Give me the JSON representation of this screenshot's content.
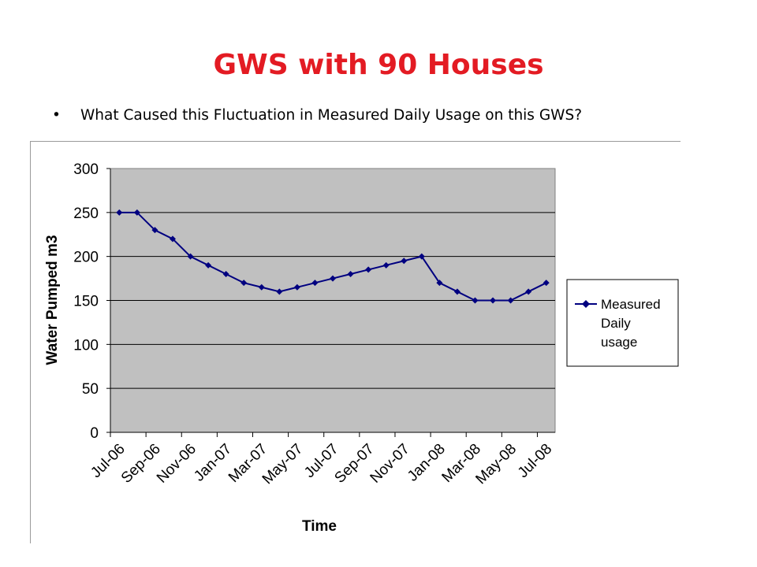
{
  "slide": {
    "title": "GWS with 90 Houses",
    "bullet": "What Caused this Fluctuation in Measured Daily Usage on this GWS?"
  },
  "chart_data": {
    "type": "line",
    "xlabel": "Time",
    "ylabel": "Water Pumped m3",
    "ylim": [
      0,
      300
    ],
    "yticks": [
      0,
      50,
      100,
      150,
      200,
      250,
      300
    ],
    "xtick_labels": [
      "Jul-06",
      "Sep-06",
      "Nov-06",
      "Jan-07",
      "Mar-07",
      "May-07",
      "Jul-07",
      "Sep-07",
      "Nov-07",
      "Jan-08",
      "Mar-08",
      "May-08",
      "Jul-08"
    ],
    "x": [
      "2006-07-15",
      "2006-08-15",
      "2006-09-15",
      "2006-10-15",
      "2006-11-15",
      "2006-12-15",
      "2007-01-15",
      "2007-02-15",
      "2007-03-15",
      "2007-04-15",
      "2007-05-15",
      "2007-06-15",
      "2007-07-15",
      "2007-08-15",
      "2007-09-15",
      "2007-10-15",
      "2007-11-15",
      "2007-12-15",
      "2008-01-15",
      "2008-02-15",
      "2008-03-15",
      "2008-04-15",
      "2008-05-15",
      "2008-06-15",
      "2008-07-15"
    ],
    "series": [
      {
        "name": "Measured Daily usage",
        "color": "#000080",
        "marker": "diamond",
        "values": [
          250,
          250,
          230,
          220,
          200,
          190,
          180,
          170,
          165,
          160,
          165,
          170,
          175,
          180,
          185,
          190,
          195,
          200,
          170,
          160,
          150,
          150,
          150,
          160,
          170
        ]
      }
    ],
    "legend_position": "right",
    "grid": "horizontal",
    "plot_background": "#c0c0c0"
  }
}
